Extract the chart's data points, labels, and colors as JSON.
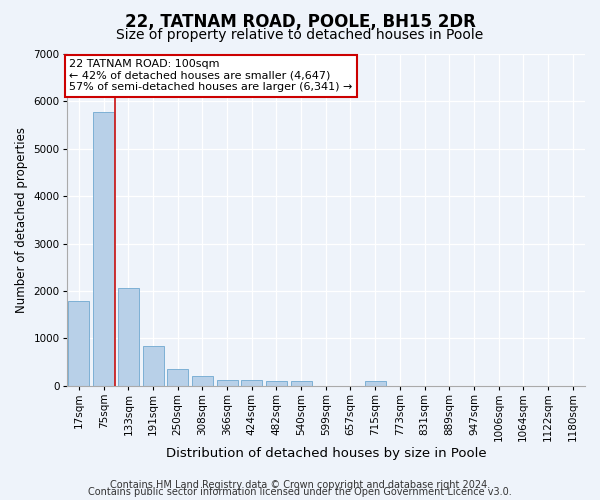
{
  "title": "22, TATNAM ROAD, POOLE, BH15 2DR",
  "subtitle": "Size of property relative to detached houses in Poole",
  "xlabel": "Distribution of detached houses by size in Poole",
  "ylabel": "Number of detached properties",
  "footnote1": "Contains HM Land Registry data © Crown copyright and database right 2024.",
  "footnote2": "Contains public sector information licensed under the Open Government Licence v3.0.",
  "categories": [
    "17sqm",
    "75sqm",
    "133sqm",
    "191sqm",
    "250sqm",
    "308sqm",
    "366sqm",
    "424sqm",
    "482sqm",
    "540sqm",
    "599sqm",
    "657sqm",
    "715sqm",
    "773sqm",
    "831sqm",
    "889sqm",
    "947sqm",
    "1006sqm",
    "1064sqm",
    "1122sqm",
    "1180sqm"
  ],
  "values": [
    1780,
    5780,
    2060,
    830,
    350,
    200,
    130,
    115,
    110,
    90,
    0,
    0,
    110,
    0,
    0,
    0,
    0,
    0,
    0,
    0,
    0
  ],
  "bar_color": "#b8d0e8",
  "bar_edge_color": "#6fa8d0",
  "vline_color": "#cc2222",
  "annotation_label": "22 TATNAM ROAD: 100sqm",
  "annotation_line1": "← 42% of detached houses are smaller (4,647)",
  "annotation_line2": "57% of semi-detached houses are larger (6,341) →",
  "ylim": [
    0,
    7000
  ],
  "yticks": [
    0,
    1000,
    2000,
    3000,
    4000,
    5000,
    6000,
    7000
  ],
  "bg_color": "#eef3fa",
  "plot_bg_color": "#eef3fa",
  "annotation_box_color": "#ffffff",
  "annotation_box_edge": "#cc0000",
  "vline_x": 1.45,
  "title_fontsize": 12,
  "subtitle_fontsize": 10,
  "xlabel_fontsize": 9.5,
  "ylabel_fontsize": 8.5,
  "tick_fontsize": 7.5,
  "annot_fontsize": 8,
  "footnote_fontsize": 7
}
